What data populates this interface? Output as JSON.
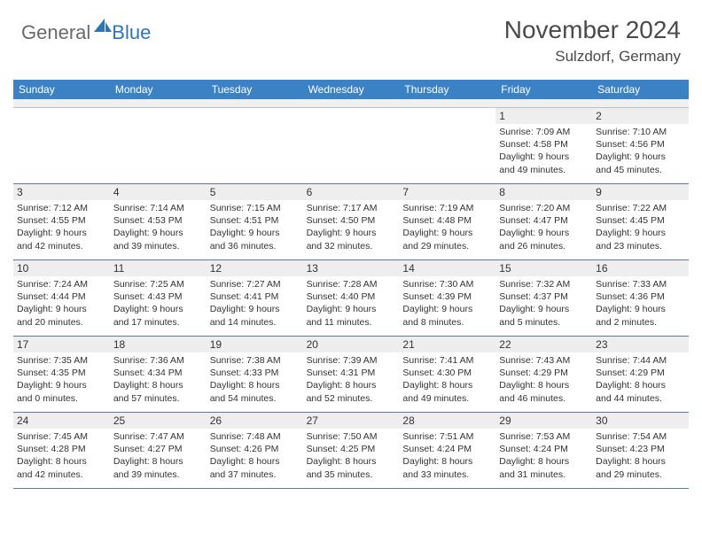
{
  "logo": {
    "general": "General",
    "blue": "Blue"
  },
  "header": {
    "month_title": "November 2024",
    "location": "Sulzdorf, Germany"
  },
  "colors": {
    "header_bg": "#3b82c4",
    "header_text": "#ffffff",
    "daynum_bg": "#eeeeee",
    "border": "#5b7ba3",
    "logo_blue": "#2f75b5",
    "logo_gray": "#6a6a6a"
  },
  "weekdays": [
    "Sunday",
    "Monday",
    "Tuesday",
    "Wednesday",
    "Thursday",
    "Friday",
    "Saturday"
  ],
  "weeks": [
    [
      {
        "n": "",
        "sr": "",
        "ss": "",
        "dl1": "",
        "dl2": ""
      },
      {
        "n": "",
        "sr": "",
        "ss": "",
        "dl1": "",
        "dl2": ""
      },
      {
        "n": "",
        "sr": "",
        "ss": "",
        "dl1": "",
        "dl2": ""
      },
      {
        "n": "",
        "sr": "",
        "ss": "",
        "dl1": "",
        "dl2": ""
      },
      {
        "n": "",
        "sr": "",
        "ss": "",
        "dl1": "",
        "dl2": ""
      },
      {
        "n": "1",
        "sr": "Sunrise: 7:09 AM",
        "ss": "Sunset: 4:58 PM",
        "dl1": "Daylight: 9 hours",
        "dl2": "and 49 minutes."
      },
      {
        "n": "2",
        "sr": "Sunrise: 7:10 AM",
        "ss": "Sunset: 4:56 PM",
        "dl1": "Daylight: 9 hours",
        "dl2": "and 45 minutes."
      }
    ],
    [
      {
        "n": "3",
        "sr": "Sunrise: 7:12 AM",
        "ss": "Sunset: 4:55 PM",
        "dl1": "Daylight: 9 hours",
        "dl2": "and 42 minutes."
      },
      {
        "n": "4",
        "sr": "Sunrise: 7:14 AM",
        "ss": "Sunset: 4:53 PM",
        "dl1": "Daylight: 9 hours",
        "dl2": "and 39 minutes."
      },
      {
        "n": "5",
        "sr": "Sunrise: 7:15 AM",
        "ss": "Sunset: 4:51 PM",
        "dl1": "Daylight: 9 hours",
        "dl2": "and 36 minutes."
      },
      {
        "n": "6",
        "sr": "Sunrise: 7:17 AM",
        "ss": "Sunset: 4:50 PM",
        "dl1": "Daylight: 9 hours",
        "dl2": "and 32 minutes."
      },
      {
        "n": "7",
        "sr": "Sunrise: 7:19 AM",
        "ss": "Sunset: 4:48 PM",
        "dl1": "Daylight: 9 hours",
        "dl2": "and 29 minutes."
      },
      {
        "n": "8",
        "sr": "Sunrise: 7:20 AM",
        "ss": "Sunset: 4:47 PM",
        "dl1": "Daylight: 9 hours",
        "dl2": "and 26 minutes."
      },
      {
        "n": "9",
        "sr": "Sunrise: 7:22 AM",
        "ss": "Sunset: 4:45 PM",
        "dl1": "Daylight: 9 hours",
        "dl2": "and 23 minutes."
      }
    ],
    [
      {
        "n": "10",
        "sr": "Sunrise: 7:24 AM",
        "ss": "Sunset: 4:44 PM",
        "dl1": "Daylight: 9 hours",
        "dl2": "and 20 minutes."
      },
      {
        "n": "11",
        "sr": "Sunrise: 7:25 AM",
        "ss": "Sunset: 4:43 PM",
        "dl1": "Daylight: 9 hours",
        "dl2": "and 17 minutes."
      },
      {
        "n": "12",
        "sr": "Sunrise: 7:27 AM",
        "ss": "Sunset: 4:41 PM",
        "dl1": "Daylight: 9 hours",
        "dl2": "and 14 minutes."
      },
      {
        "n": "13",
        "sr": "Sunrise: 7:28 AM",
        "ss": "Sunset: 4:40 PM",
        "dl1": "Daylight: 9 hours",
        "dl2": "and 11 minutes."
      },
      {
        "n": "14",
        "sr": "Sunrise: 7:30 AM",
        "ss": "Sunset: 4:39 PM",
        "dl1": "Daylight: 9 hours",
        "dl2": "and 8 minutes."
      },
      {
        "n": "15",
        "sr": "Sunrise: 7:32 AM",
        "ss": "Sunset: 4:37 PM",
        "dl1": "Daylight: 9 hours",
        "dl2": "and 5 minutes."
      },
      {
        "n": "16",
        "sr": "Sunrise: 7:33 AM",
        "ss": "Sunset: 4:36 PM",
        "dl1": "Daylight: 9 hours",
        "dl2": "and 2 minutes."
      }
    ],
    [
      {
        "n": "17",
        "sr": "Sunrise: 7:35 AM",
        "ss": "Sunset: 4:35 PM",
        "dl1": "Daylight: 9 hours",
        "dl2": "and 0 minutes."
      },
      {
        "n": "18",
        "sr": "Sunrise: 7:36 AM",
        "ss": "Sunset: 4:34 PM",
        "dl1": "Daylight: 8 hours",
        "dl2": "and 57 minutes."
      },
      {
        "n": "19",
        "sr": "Sunrise: 7:38 AM",
        "ss": "Sunset: 4:33 PM",
        "dl1": "Daylight: 8 hours",
        "dl2": "and 54 minutes."
      },
      {
        "n": "20",
        "sr": "Sunrise: 7:39 AM",
        "ss": "Sunset: 4:31 PM",
        "dl1": "Daylight: 8 hours",
        "dl2": "and 52 minutes."
      },
      {
        "n": "21",
        "sr": "Sunrise: 7:41 AM",
        "ss": "Sunset: 4:30 PM",
        "dl1": "Daylight: 8 hours",
        "dl2": "and 49 minutes."
      },
      {
        "n": "22",
        "sr": "Sunrise: 7:43 AM",
        "ss": "Sunset: 4:29 PM",
        "dl1": "Daylight: 8 hours",
        "dl2": "and 46 minutes."
      },
      {
        "n": "23",
        "sr": "Sunrise: 7:44 AM",
        "ss": "Sunset: 4:29 PM",
        "dl1": "Daylight: 8 hours",
        "dl2": "and 44 minutes."
      }
    ],
    [
      {
        "n": "24",
        "sr": "Sunrise: 7:45 AM",
        "ss": "Sunset: 4:28 PM",
        "dl1": "Daylight: 8 hours",
        "dl2": "and 42 minutes."
      },
      {
        "n": "25",
        "sr": "Sunrise: 7:47 AM",
        "ss": "Sunset: 4:27 PM",
        "dl1": "Daylight: 8 hours",
        "dl2": "and 39 minutes."
      },
      {
        "n": "26",
        "sr": "Sunrise: 7:48 AM",
        "ss": "Sunset: 4:26 PM",
        "dl1": "Daylight: 8 hours",
        "dl2": "and 37 minutes."
      },
      {
        "n": "27",
        "sr": "Sunrise: 7:50 AM",
        "ss": "Sunset: 4:25 PM",
        "dl1": "Daylight: 8 hours",
        "dl2": "and 35 minutes."
      },
      {
        "n": "28",
        "sr": "Sunrise: 7:51 AM",
        "ss": "Sunset: 4:24 PM",
        "dl1": "Daylight: 8 hours",
        "dl2": "and 33 minutes."
      },
      {
        "n": "29",
        "sr": "Sunrise: 7:53 AM",
        "ss": "Sunset: 4:24 PM",
        "dl1": "Daylight: 8 hours",
        "dl2": "and 31 minutes."
      },
      {
        "n": "30",
        "sr": "Sunrise: 7:54 AM",
        "ss": "Sunset: 4:23 PM",
        "dl1": "Daylight: 8 hours",
        "dl2": "and 29 minutes."
      }
    ]
  ]
}
